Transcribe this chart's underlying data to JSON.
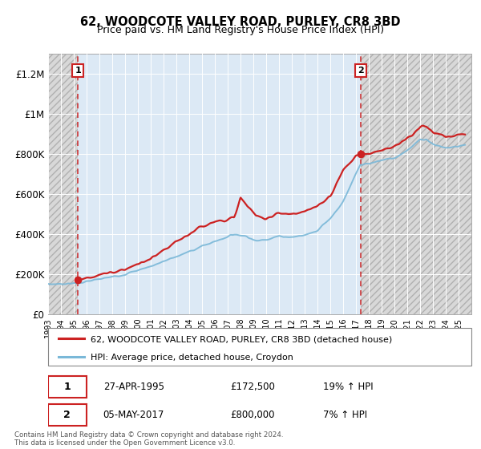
{
  "title": "62, WOODCOTE VALLEY ROAD, PURLEY, CR8 3BD",
  "subtitle": "Price paid vs. HM Land Registry's House Price Index (HPI)",
  "legend_line1": "62, WOODCOTE VALLEY ROAD, PURLEY, CR8 3BD (detached house)",
  "legend_line2": "HPI: Average price, detached house, Croydon",
  "footnote": "Contains HM Land Registry data © Crown copyright and database right 2024.\nThis data is licensed under the Open Government Licence v3.0.",
  "transaction1_label": "1",
  "transaction1_date": "27-APR-1995",
  "transaction1_price": "£172,500",
  "transaction1_hpi": "19% ↑ HPI",
  "transaction2_label": "2",
  "transaction2_date": "05-MAY-2017",
  "transaction2_price": "£800,000",
  "transaction2_hpi": "7% ↑ HPI",
  "sale1_year": 1995.32,
  "sale1_price": 172500,
  "sale2_year": 2017.35,
  "sale2_price": 800000,
  "hpi_color": "#7ab8d8",
  "price_color": "#cc2222",
  "hatch_color": "#c8c8c8",
  "background_color": "#dce9f5",
  "grid_color": "#ffffff",
  "ylim_min": 0,
  "ylim_max": 1300000,
  "xmin": 1993,
  "xmax": 2026,
  "yticks": [
    0,
    200000,
    400000,
    600000,
    800000,
    1000000,
    1200000
  ],
  "ytick_labels": [
    "£0",
    "£200K",
    "£400K",
    "£600K",
    "£800K",
    "£1M",
    "£1.2M"
  ],
  "xticks": [
    1993,
    1994,
    1995,
    1996,
    1997,
    1998,
    1999,
    2000,
    2001,
    2002,
    2003,
    2004,
    2005,
    2006,
    2007,
    2008,
    2009,
    2010,
    2011,
    2012,
    2013,
    2014,
    2015,
    2016,
    2017,
    2018,
    2019,
    2020,
    2021,
    2022,
    2023,
    2024,
    2025
  ]
}
